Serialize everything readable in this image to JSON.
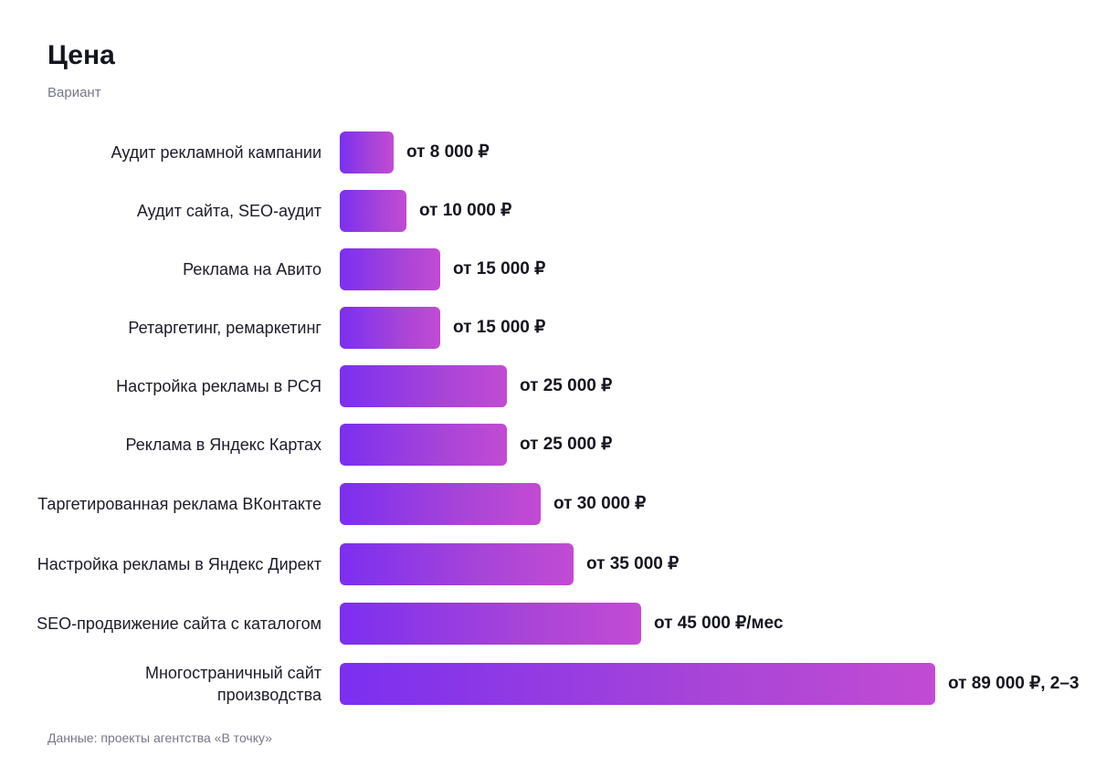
{
  "chart_data": {
    "type": "bar",
    "orientation": "horizontal",
    "title": "Цена",
    "subtitle": "Вариант",
    "source": "Данные: проекты агентства «В точку»",
    "categories": [
      "Аудит рекламной кампании",
      "Аудит сайта, SEO-аудит",
      "Реклама на Авито",
      "Ретаргетинг, ремаркетинг",
      "Настройка рекламы в РСЯ",
      "Реклама в Яндекс Картах",
      "Таргетированная реклама ВКонтакте",
      "Настройка рекламы в Яндекс Директ",
      "SEO-продвижение сайта с каталогом",
      "Многостраничный сайт производства"
    ],
    "values": [
      8000,
      10000,
      15000,
      15000,
      25000,
      25000,
      30000,
      35000,
      45000,
      89000
    ],
    "value_labels": [
      "от 8 000 ₽",
      "от 10 000 ₽",
      "от 15 000 ₽",
      "от 15 000 ₽",
      "от 25 000 ₽",
      "от 25 000 ₽",
      "от 30 000 ₽",
      "от 35 000 ₽",
      "от 45 000 ₽/мес",
      "от 89 000 ₽, 2–3"
    ],
    "xlim": [
      0,
      89000
    ],
    "grid": false,
    "colors": {
      "bar_start": "#7b2ff0",
      "bar_end": "#c24bd3"
    }
  }
}
